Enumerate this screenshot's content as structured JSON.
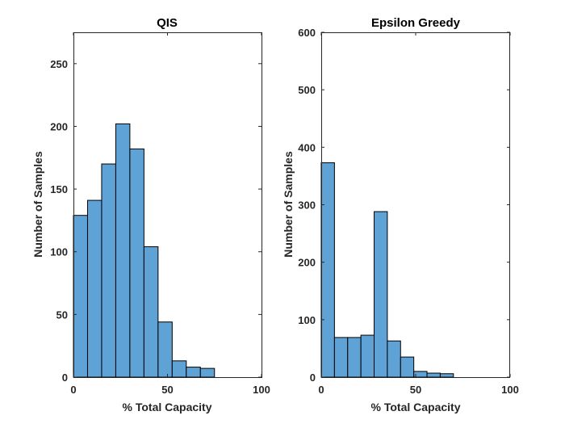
{
  "chart_data": [
    {
      "type": "bar",
      "title": "QIS",
      "xlabel": "% Total Capacity",
      "ylabel": "Number of Samples",
      "xlim": [
        0,
        100
      ],
      "ylim": [
        0,
        275
      ],
      "xticks": [
        0,
        50,
        100
      ],
      "yticks": [
        0,
        50,
        100,
        150,
        200,
        250
      ],
      "bin_edges": [
        0,
        7.5,
        15,
        22.5,
        30,
        37.5,
        45,
        52.5,
        60,
        67.5,
        75
      ],
      "values": [
        129,
        141,
        170,
        202,
        182,
        104,
        44,
        13,
        8,
        7
      ],
      "grid": false
    },
    {
      "type": "bar",
      "title": "Epsilon Greedy",
      "xlabel": "% Total Capacity",
      "ylabel": "Number of Samples",
      "xlim": [
        0,
        100
      ],
      "ylim": [
        0,
        600
      ],
      "xticks": [
        0,
        50,
        100
      ],
      "yticks": [
        0,
        100,
        200,
        300,
        400,
        500,
        600
      ],
      "bin_edges": [
        0,
        7,
        14,
        21,
        28,
        35,
        42,
        49,
        56,
        63,
        70
      ],
      "values": [
        373,
        69,
        69,
        73,
        288,
        63,
        35,
        10,
        7,
        6
      ],
      "grid": false
    }
  ],
  "colors": {
    "bar_fill": "#5fa2d6",
    "bar_edge": "#000000",
    "axes": "#262626"
  }
}
